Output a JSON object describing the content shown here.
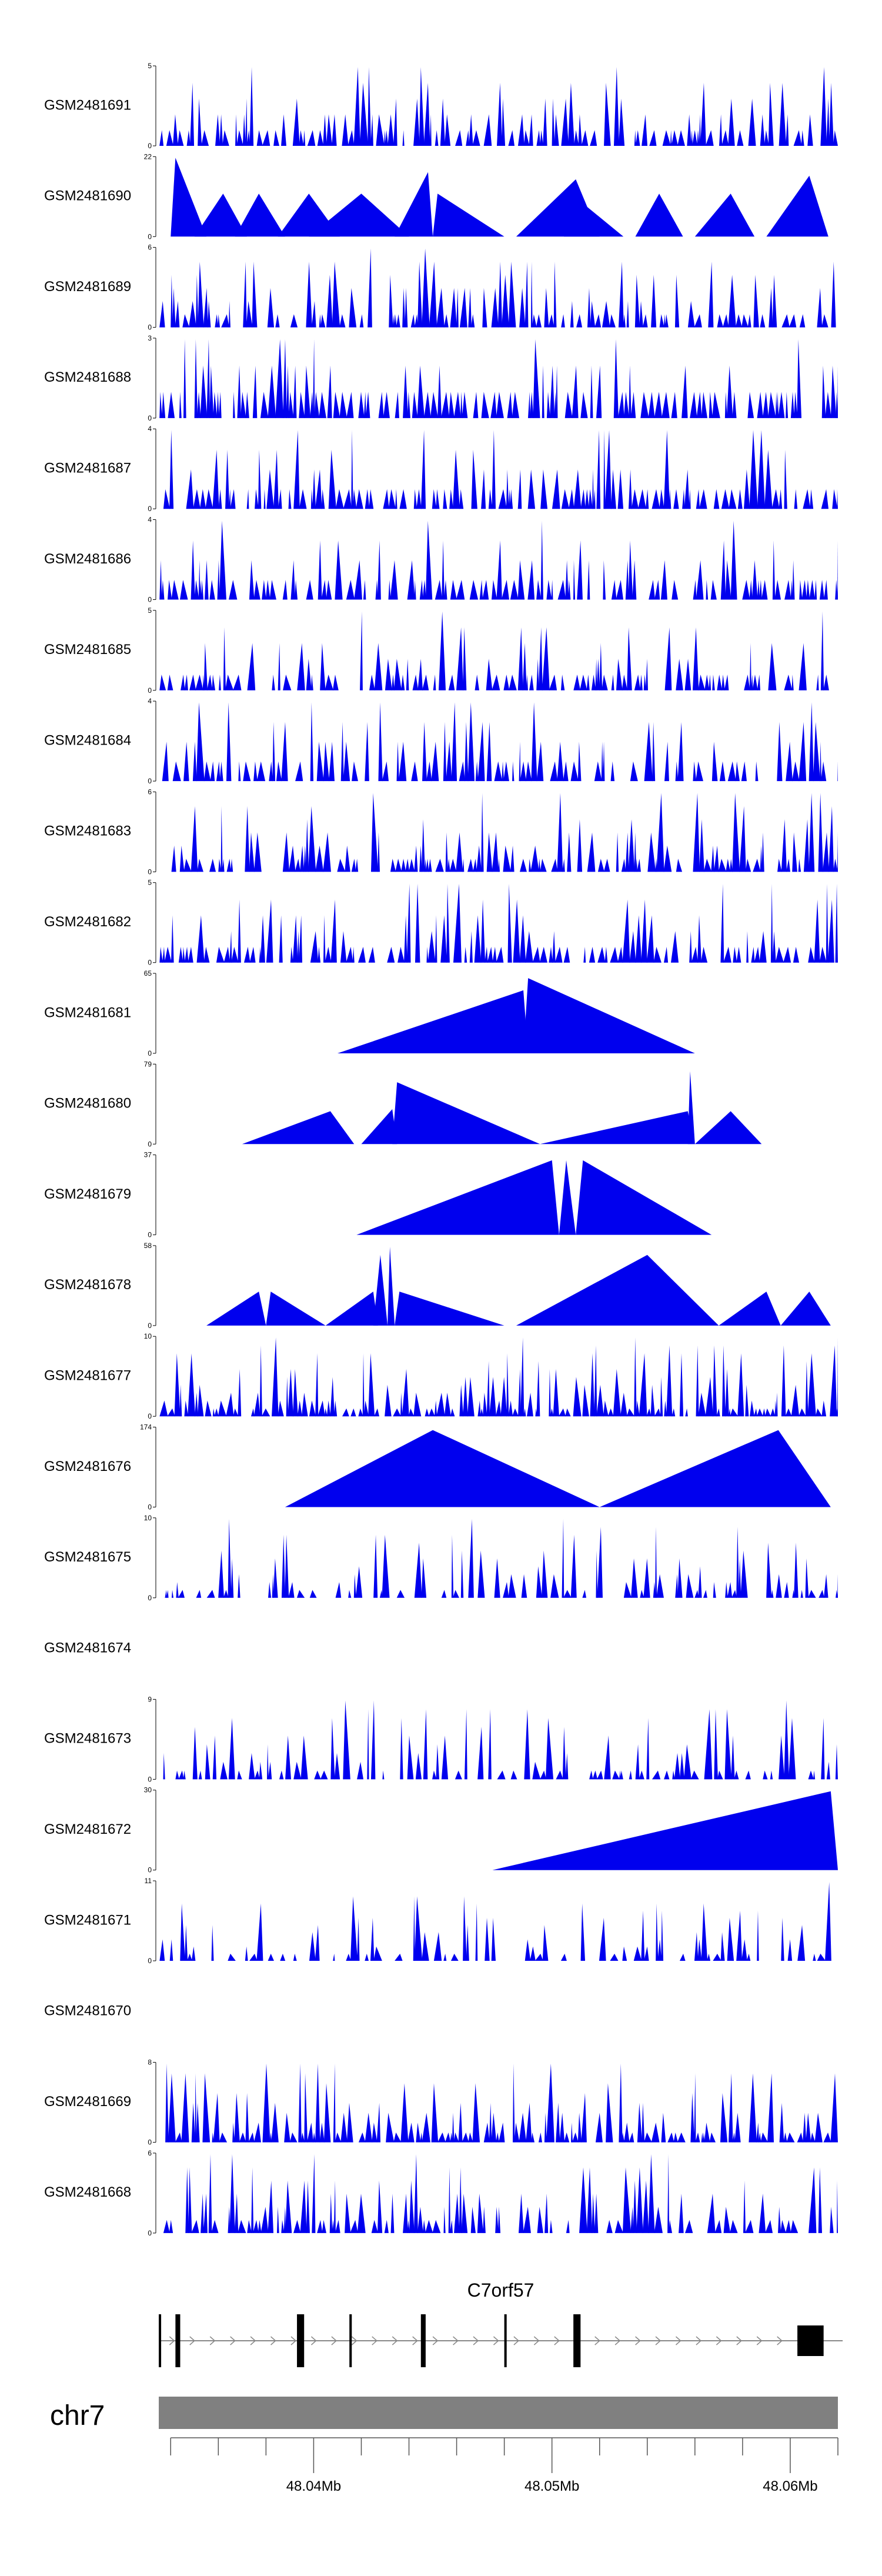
{
  "chart_data": {
    "type": "area",
    "colors": {
      "fill": "#0000ee",
      "ideogram": "#808080",
      "gene": "#000000",
      "intron": "#888888"
    },
    "x_range": [
      48.0335,
      48.062
    ],
    "x_unit": "Mb",
    "ticks": [
      {
        "value": 48.04,
        "label": "48.04Mb"
      },
      {
        "value": 48.05,
        "label": "48.05Mb"
      },
      {
        "value": 48.06,
        "label": "48.06Mb"
      }
    ],
    "chromosome": "chr7",
    "gene": {
      "name": "C7orf57",
      "start": 48.0335,
      "end": 48.0622,
      "exons": [
        [
          48.0335,
          48.0336
        ],
        [
          48.0342,
          48.0344
        ],
        [
          48.0393,
          48.0396
        ],
        [
          48.0415,
          48.0416
        ],
        [
          48.0445,
          48.0447
        ],
        [
          48.048,
          48.0481
        ],
        [
          48.0509,
          48.0512
        ],
        [
          48.0603,
          48.0614
        ]
      ]
    },
    "tracks": [
      {
        "sample": "GSM2481691",
        "ymax": "5",
        "ymin": "0",
        "max": 5,
        "style": "dense",
        "seed": 11,
        "density": 0.55
      },
      {
        "sample": "GSM2481690",
        "ymax": "22",
        "ymin": "0",
        "max": 22,
        "style": "peaks",
        "peaks": [
          [
            48.034,
            48.0342,
            48.0355,
            22
          ],
          [
            48.035,
            48.0362,
            48.0372,
            12
          ],
          [
            48.0367,
            48.0377,
            48.0388,
            12
          ],
          [
            48.0385,
            48.0398,
            48.0411,
            12
          ],
          [
            48.0398,
            48.042,
            48.044,
            12
          ],
          [
            48.0434,
            48.0448,
            48.045,
            18
          ],
          [
            48.045,
            48.0452,
            48.048,
            12
          ],
          [
            48.0485,
            48.051,
            48.052,
            16
          ],
          [
            48.0505,
            48.0508,
            48.053,
            12
          ],
          [
            48.0535,
            48.0545,
            48.0555,
            12
          ],
          [
            48.056,
            48.0575,
            48.0585,
            12
          ],
          [
            48.059,
            48.0608,
            48.0616,
            17
          ]
        ]
      },
      {
        "sample": "GSM2481689",
        "ymax": "6",
        "ymin": "0",
        "max": 6,
        "style": "dense",
        "seed": 23,
        "density": 0.55
      },
      {
        "sample": "GSM2481688",
        "ymax": "3",
        "ymin": "0",
        "max": 3,
        "style": "dense",
        "seed": 37,
        "density": 0.65
      },
      {
        "sample": "GSM2481687",
        "ymax": "4",
        "ymin": "0",
        "max": 4,
        "style": "dense",
        "seed": 41,
        "density": 0.6
      },
      {
        "sample": "GSM2481686",
        "ymax": "4",
        "ymin": "0",
        "max": 4,
        "style": "dense",
        "seed": 53,
        "density": 0.55
      },
      {
        "sample": "GSM2481685",
        "ymax": "5",
        "ymin": "0",
        "max": 5,
        "style": "dense",
        "seed": 67,
        "density": 0.5
      },
      {
        "sample": "GSM2481684",
        "ymax": "4",
        "ymin": "0",
        "max": 4,
        "style": "dense",
        "seed": 71,
        "density": 0.45
      },
      {
        "sample": "GSM2481683",
        "ymax": "6",
        "ymin": "0",
        "max": 6,
        "style": "dense",
        "seed": 83,
        "density": 0.55
      },
      {
        "sample": "GSM2481682",
        "ymax": "5",
        "ymin": "0",
        "max": 5,
        "style": "dense",
        "seed": 97,
        "density": 0.55
      },
      {
        "sample": "GSM2481681",
        "ymax": "65",
        "ymin": "0",
        "max": 65,
        "style": "peaks",
        "peaks": [
          [
            48.041,
            48.0488,
            48.049,
            52
          ],
          [
            48.0488,
            48.049,
            48.056,
            62
          ]
        ]
      },
      {
        "sample": "GSM2481680",
        "ymax": "79",
        "ymin": "0",
        "max": 79,
        "style": "peaks",
        "peaks": [
          [
            48.037,
            48.0407,
            48.0417,
            33
          ],
          [
            48.042,
            48.0433,
            48.0435,
            35
          ],
          [
            48.0433,
            48.0435,
            48.0495,
            62
          ],
          [
            48.0495,
            48.0557,
            48.056,
            33
          ],
          [
            48.0557,
            48.0558,
            48.056,
            73
          ],
          [
            48.056,
            48.0575,
            48.0588,
            33
          ]
        ]
      },
      {
        "sample": "GSM2481679",
        "ymax": "37",
        "ymin": "0",
        "max": 37,
        "style": "peaks",
        "peaks": [
          [
            48.0418,
            48.05,
            48.0503,
            35
          ],
          [
            48.0503,
            48.0506,
            48.051,
            35
          ],
          [
            48.051,
            48.0513,
            48.0567,
            35
          ]
        ]
      },
      {
        "sample": "GSM2481678",
        "ymax": "58",
        "ymin": "0",
        "max": 58,
        "style": "peaks",
        "peaks": [
          [
            48.0355,
            48.0377,
            48.038,
            25
          ],
          [
            48.038,
            48.0382,
            48.0405,
            25
          ],
          [
            48.0405,
            48.0425,
            48.0427,
            25
          ],
          [
            48.0425,
            48.0428,
            48.0431,
            52
          ],
          [
            48.0431,
            48.0432,
            48.0434,
            58
          ],
          [
            48.0434,
            48.0436,
            48.048,
            25
          ],
          [
            48.0485,
            48.054,
            48.057,
            52
          ],
          [
            48.057,
            48.059,
            48.0596,
            25
          ],
          [
            48.0596,
            48.0608,
            48.0617,
            25
          ]
        ]
      },
      {
        "sample": "GSM2481677",
        "ymax": "10",
        "ymin": "0",
        "max": 10,
        "style": "dense",
        "seed": 101,
        "density": 0.75
      },
      {
        "sample": "GSM2481676",
        "ymax": "174",
        "ymin": "0",
        "max": 174,
        "style": "peaks",
        "peaks": [
          [
            48.0388,
            48.045,
            48.052,
            170
          ],
          [
            48.052,
            48.0595,
            48.0617,
            170
          ]
        ]
      },
      {
        "sample": "GSM2481675",
        "ymax": "10",
        "ymin": "0",
        "max": 10,
        "style": "dense",
        "seed": 113,
        "density": 0.4
      },
      {
        "sample": "GSM2481674",
        "ymax": "",
        "ymin": "",
        "max": 0,
        "style": "empty"
      },
      {
        "sample": "GSM2481673",
        "ymax": "9",
        "ymin": "0",
        "max": 9,
        "style": "dense",
        "seed": 127,
        "density": 0.4
      },
      {
        "sample": "GSM2481672",
        "ymax": "30",
        "ymin": "0",
        "max": 30,
        "style": "peaks",
        "peaks": [
          [
            48.0475,
            48.0617,
            48.062,
            30
          ]
        ]
      },
      {
        "sample": "GSM2481671",
        "ymax": "11",
        "ymin": "0",
        "max": 11,
        "style": "dense",
        "seed": 131,
        "density": 0.4
      },
      {
        "sample": "GSM2481670",
        "ymax": "",
        "ymin": "",
        "max": 0,
        "style": "empty"
      },
      {
        "sample": "GSM2481669",
        "ymax": "8",
        "ymin": "0",
        "max": 8,
        "style": "dense",
        "seed": 139,
        "density": 0.7
      },
      {
        "sample": "GSM2481668",
        "ymax": "6",
        "ymin": "0",
        "max": 6,
        "style": "dense",
        "seed": 149,
        "density": 0.55
      }
    ]
  }
}
